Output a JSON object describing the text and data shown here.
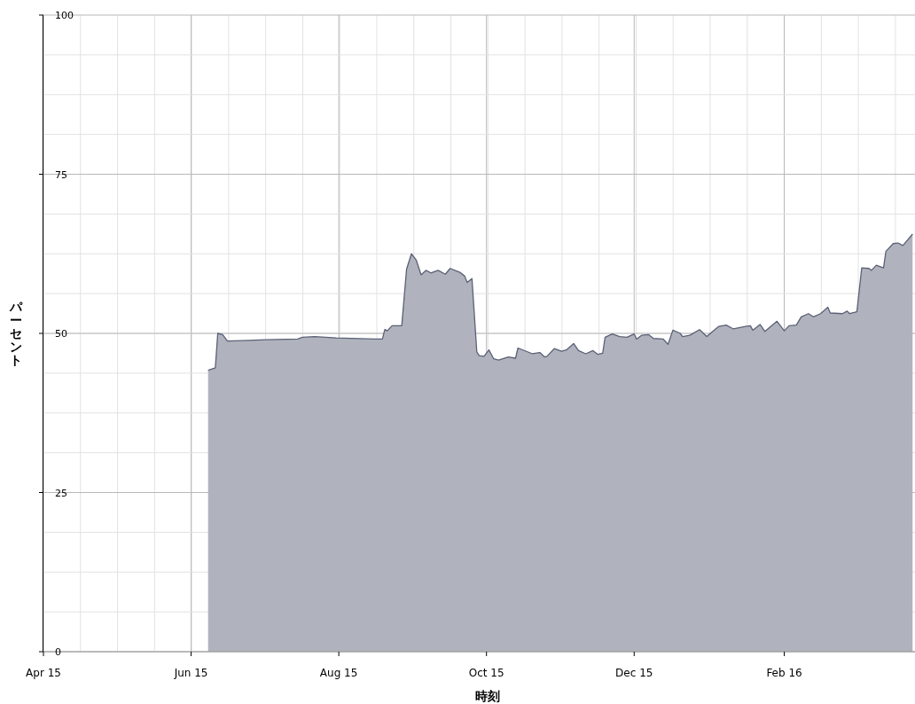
{
  "chart_data": {
    "type": "area",
    "xlabel": "時刻",
    "ylabel": "パーセント",
    "x": [
      "2015-06-08",
      "2015-06-11",
      "2015-06-12",
      "2015-06-14",
      "2015-06-16",
      "2015-06-25",
      "2015-07-02",
      "2015-07-15",
      "2015-07-17",
      "2015-07-22",
      "2015-07-31",
      "2015-08-16",
      "2015-08-19",
      "2015-08-20",
      "2015-08-21",
      "2015-08-23",
      "2015-08-27",
      "2015-08-29",
      "2015-08-31",
      "2015-09-02",
      "2015-09-04",
      "2015-09-06",
      "2015-09-08",
      "2015-09-11",
      "2015-09-14",
      "2015-09-16",
      "2015-09-20",
      "2015-09-22",
      "2015-09-23",
      "2015-09-25",
      "2015-09-27",
      "2015-09-28",
      "2015-09-30",
      "2015-10-02",
      "2015-10-04",
      "2015-10-06",
      "2015-10-10",
      "2015-10-13",
      "2015-10-14",
      "2015-10-20",
      "2015-10-23",
      "2015-10-25",
      "2015-10-26",
      "2015-10-29",
      "2015-11-01",
      "2015-11-03",
      "2015-11-06",
      "2015-11-08",
      "2015-11-11",
      "2015-11-14",
      "2015-11-16",
      "2015-11-18",
      "2015-11-19",
      "2015-11-22",
      "2015-11-25",
      "2015-11-28",
      "2015-12-01",
      "2015-12-02",
      "2015-12-04",
      "2015-12-07",
      "2015-12-09",
      "2015-12-13",
      "2015-12-15",
      "2015-12-17",
      "2015-12-20",
      "2015-12-21",
      "2015-12-24",
      "2015-12-28",
      "2015-12-31",
      "2016-01-03",
      "2016-01-05",
      "2016-01-08",
      "2016-01-11",
      "2016-01-16",
      "2016-01-18",
      "2016-01-19",
      "2016-01-22",
      "2016-01-24",
      "2016-01-29",
      "2016-02-01",
      "2016-02-03",
      "2016-02-06",
      "2016-02-08",
      "2016-02-11",
      "2016-02-13",
      "2016-02-16",
      "2016-02-19",
      "2016-02-20",
      "2016-02-25",
      "2016-02-27",
      "2016-02-28",
      "2016-03-02",
      "2016-03-04",
      "2016-03-07",
      "2016-03-08",
      "2016-03-10",
      "2016-03-13",
      "2016-03-14",
      "2016-03-17",
      "2016-03-19",
      "2016-03-21",
      "2016-03-25"
    ],
    "series": [
      {
        "color": "#5a6075",
        "values": [
          44.2,
          44.6,
          50.0,
          49.8,
          48.8,
          48.9,
          49.0,
          49.1,
          49.4,
          49.5,
          49.3,
          49.1,
          49.1,
          50.6,
          50.4,
          51.2,
          51.2,
          60.1,
          62.5,
          61.5,
          59.2,
          59.9,
          59.5,
          59.9,
          59.3,
          60.2,
          59.6,
          59.0,
          58.0,
          58.6,
          47.1,
          46.5,
          46.4,
          47.4,
          46.0,
          45.8,
          46.3,
          46.1,
          47.7,
          46.8,
          47.0,
          46.3,
          46.4,
          47.6,
          47.2,
          47.4,
          48.4,
          47.3,
          46.8,
          47.3,
          46.7,
          46.9,
          49.4,
          49.9,
          49.5,
          49.4,
          49.9,
          49.1,
          49.7,
          49.8,
          49.2,
          49.1,
          48.3,
          50.5,
          50.0,
          49.5,
          49.7,
          50.6,
          49.5,
          50.5,
          51.1,
          51.3,
          50.7,
          51.1,
          51.2,
          50.5,
          51.4,
          50.3,
          51.9,
          50.4,
          51.2,
          51.3,
          52.6,
          53.1,
          52.6,
          53.1,
          54.1,
          53.2,
          53.1,
          53.5,
          53.1,
          53.4,
          60.3,
          60.2,
          59.9,
          60.7,
          60.3,
          62.9,
          64.1,
          64.2,
          63.8,
          65.6
        ]
      }
    ],
    "xlim": [
      "2015-04-01",
      "2016-03-26"
    ],
    "xticks": [
      {
        "value": "2015-04-01",
        "label": "Apr 15"
      },
      {
        "value": "2015-06-01",
        "label": "Jun 15"
      },
      {
        "value": "2015-08-01",
        "label": "Aug 15"
      },
      {
        "value": "2015-10-01",
        "label": "Oct 15"
      },
      {
        "value": "2015-12-01",
        "label": "Dec 15"
      },
      {
        "value": "2016-02-01",
        "label": "Feb 16"
      }
    ],
    "ylim": [
      0,
      100
    ],
    "yticks": [
      0,
      25,
      50,
      75,
      100
    ],
    "grid": true
  }
}
